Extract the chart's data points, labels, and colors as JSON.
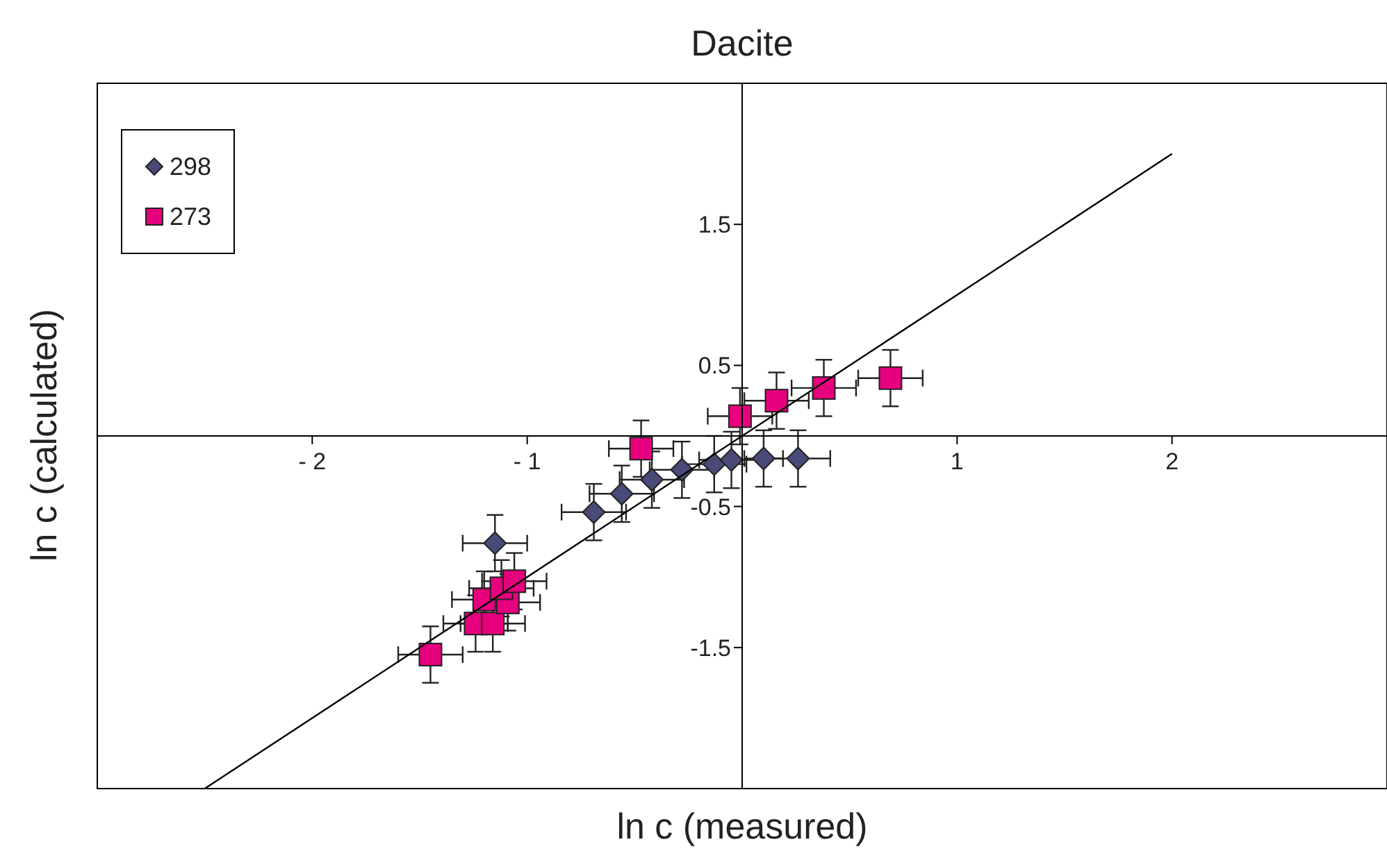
{
  "chart_data": {
    "type": "scatter",
    "title": "Dacite",
    "xlabel": "ln c (measured)",
    "ylabel": "ln c (calculated)",
    "xlim": [
      -3,
      3
    ],
    "ylim": [
      -2.5,
      2.5
    ],
    "xticks": [
      {
        "value": -2,
        "label": "- 2"
      },
      {
        "value": -1,
        "label": "- 1"
      },
      1,
      2
    ],
    "yticks": [
      1.5,
      0.5,
      -0.5,
      -1.5
    ],
    "legend": "top left",
    "series": [
      {
        "name": "298",
        "color": "#4a4a78",
        "marker": "diamond",
        "x": [
          -1.15,
          -0.69,
          -0.56,
          -0.42,
          -0.28,
          -0.13,
          -0.05,
          0.1,
          0.26
        ],
        "values": [
          -0.76,
          -0.54,
          -0.41,
          -0.31,
          -0.24,
          -0.2,
          -0.17,
          -0.16,
          -0.16
        ],
        "errors": [
          0.2,
          0.2,
          0.2,
          0.2,
          0.2,
          0.2,
          0.2,
          0.2,
          0.2
        ],
        "xerrors": [
          0.15,
          0.15,
          0.15,
          0.15,
          0.15,
          0.15,
          0.15,
          0.09,
          0.15
        ]
      },
      {
        "name": "273",
        "color": "#e6007e",
        "marker": "square",
        "x": [
          -1.45,
          -1.24,
          -1.16,
          -1.2,
          -1.09,
          -1.12,
          -1.06,
          -0.47,
          -0.01,
          0.16,
          0.38,
          0.69
        ],
        "values": [
          -1.55,
          -1.33,
          -1.33,
          -1.16,
          -1.18,
          -1.08,
          -1.03,
          -0.09,
          0.14,
          0.25,
          0.34,
          0.41
        ],
        "errors": [
          0.2,
          0.2,
          0.2,
          0.2,
          0.2,
          0.2,
          0.2,
          0.2,
          0.2,
          0.2,
          0.2,
          0.2
        ],
        "xerrors": [
          0.15,
          0.15,
          0.15,
          0.15,
          0.15,
          0.15,
          0.15,
          0.15,
          0.15,
          0.15,
          0.15,
          0.15
        ]
      },
      {
        "type": "line",
        "color": "#000000",
        "marker": "none",
        "x": [
          -2.5,
          2
        ],
        "values": [
          -2.5,
          2
        ]
      }
    ]
  }
}
